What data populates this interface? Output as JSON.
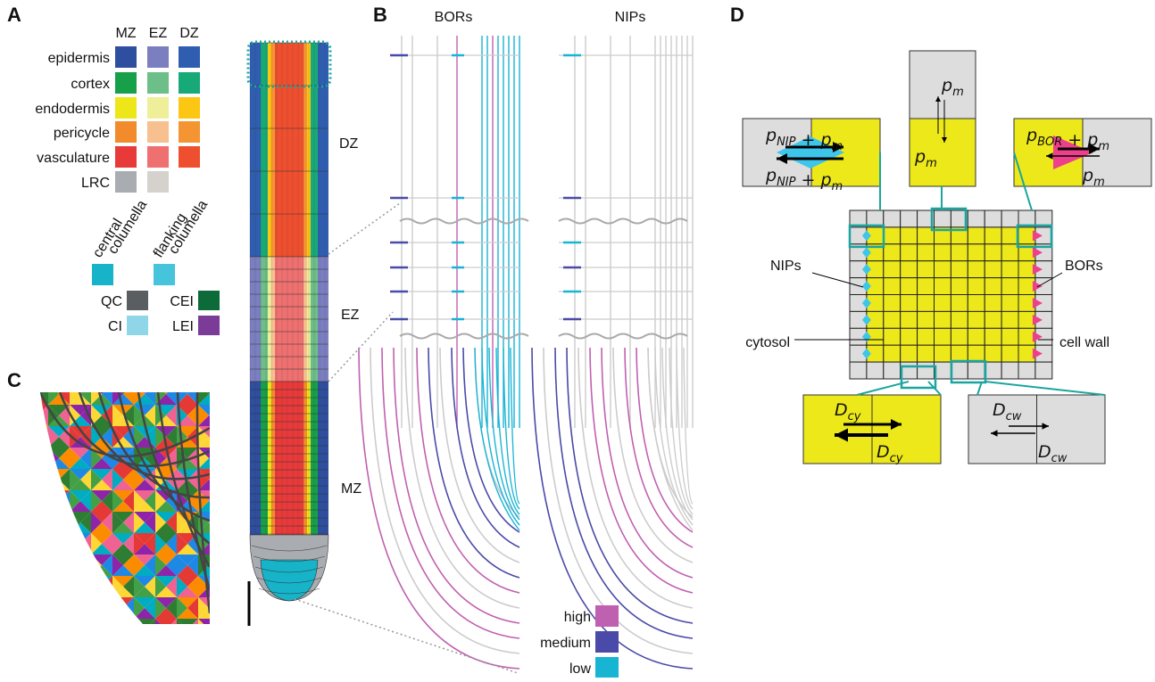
{
  "panel_a": {
    "label": "A",
    "zones": [
      "MZ",
      "EZ",
      "DZ"
    ],
    "tissues": [
      {
        "name": "epidermis",
        "colors": [
          "#2e4fa0",
          "#7b7fc0",
          "#2f5db0"
        ]
      },
      {
        "name": "cortex",
        "colors": [
          "#17a04a",
          "#6cbf88",
          "#17aa78"
        ]
      },
      {
        "name": "endodermis",
        "colors": [
          "#ede71a",
          "#efef9a",
          "#fcc712"
        ]
      },
      {
        "name": "pericycle",
        "colors": [
          "#f28b2c",
          "#f8bf8f",
          "#f59432"
        ]
      },
      {
        "name": "vasculature",
        "colors": [
          "#e93a3a",
          "#ee7070",
          "#ee4f2f"
        ]
      },
      {
        "name": "LRC",
        "colors": [
          "#a9acb0",
          "#d5d1cc",
          null
        ]
      }
    ],
    "columella": [
      {
        "lines": [
          "central",
          "columella"
        ],
        "color": "#16b3c9"
      },
      {
        "lines": [
          "flanking",
          "columella"
        ],
        "color": "#46c4dc"
      }
    ],
    "initials": [
      {
        "name": "QC",
        "color": "#5b5e61"
      },
      {
        "name": "CI",
        "color": "#8fd6e8"
      },
      {
        "name": "CEI",
        "color": "#0d6b3a"
      },
      {
        "name": "LEI",
        "color": "#7a3c96"
      }
    ]
  },
  "root": {
    "zones": [
      "DZ",
      "EZ",
      "MZ"
    ]
  },
  "panel_b": {
    "label": "B",
    "titles": [
      "BORs",
      "NIPs"
    ],
    "legend": [
      {
        "name": "high",
        "color": "#c060b0"
      },
      {
        "name": "medium",
        "color": "#4a4aa8"
      },
      {
        "name": "low",
        "color": "#18b4d4"
      }
    ]
  },
  "panel_c": {
    "label": "C"
  },
  "panel_d": {
    "label": "D",
    "callouts": [
      "NIPs",
      "BORs",
      "cytosol",
      "cell wall"
    ],
    "formulas": [
      [
        [
          "p",
          "NIP"
        ],
        [
          " + p",
          "m"
        ]
      ],
      [
        [
          "p",
          "NIP"
        ],
        [
          " + p",
          "m"
        ]
      ],
      [
        [
          "p",
          "m"
        ]
      ],
      [
        [
          "p",
          "m"
        ]
      ],
      [
        [
          "p",
          "BOR"
        ],
        [
          " + p",
          "m"
        ]
      ],
      [
        [
          "p",
          "m"
        ]
      ],
      [
        [
          "D",
          "cy"
        ]
      ],
      [
        [
          "D",
          "cy"
        ]
      ],
      [
        [
          "D",
          "cw"
        ]
      ],
      [
        [
          "D",
          "cw"
        ]
      ]
    ]
  }
}
